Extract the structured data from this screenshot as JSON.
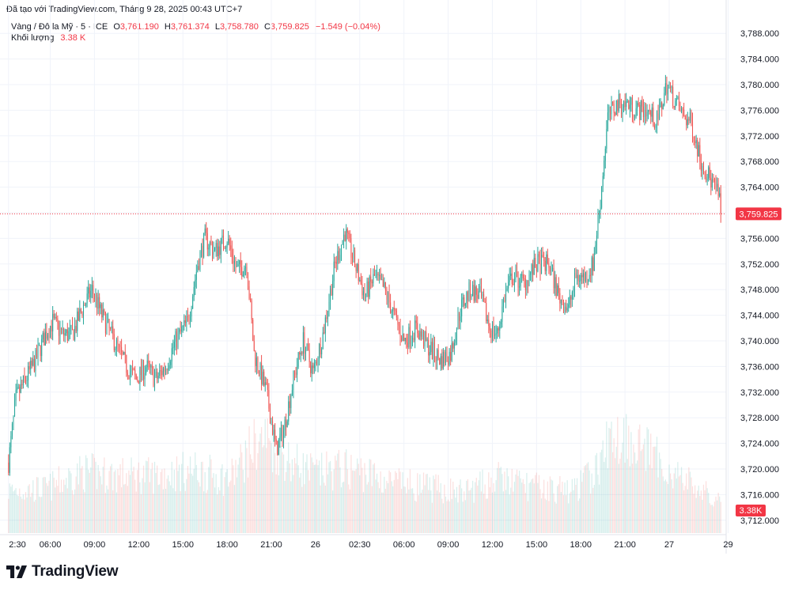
{
  "header": {
    "created_line": "Đã tạo với TradingView.com, Tháng 9 28, 2025 00:43 UTC+7"
  },
  "legend": {
    "symbol": "Vàng / Đô la Mỹ · 5 · ICE",
    "open_label": "O",
    "open_value": "3,761.190",
    "high_label": "H",
    "high_value": "3,761.374",
    "low_label": "L",
    "low_value": "3,758.780",
    "close_label": "C",
    "close_value": "3,759.825",
    "change": "−1.549 (−0.04%)",
    "volume_label": "Khối lượng",
    "volume_value": "3.38 K"
  },
  "brand": {
    "name": "TradingView"
  },
  "colors": {
    "up": "#26a69a",
    "down": "#ef5350",
    "price_badge": "#f23645",
    "grid": "#f0f3fa"
  },
  "chart_data": {
    "type": "candlestick",
    "title": "Vàng / Đô la Mỹ · 5 · ICE",
    "ylim": [
      3710,
      3790
    ],
    "y_ticks": [
      "3,788.000",
      "3,784.000",
      "3,780.000",
      "3,776.000",
      "3,772.000",
      "3,768.000",
      "3,764.000",
      "3,760.000",
      "3,756.000",
      "3,752.000",
      "3,748.000",
      "3,744.000",
      "3,740.000",
      "3,736.000",
      "3,732.000",
      "3,728.000",
      "3,724.000",
      "3,720.000",
      "3,716.000",
      "3,712.000"
    ],
    "y_tick_values": [
      3788,
      3784,
      3780,
      3776,
      3772,
      3768,
      3764,
      3760,
      3756,
      3752,
      3748,
      3744,
      3740,
      3736,
      3732,
      3728,
      3724,
      3720,
      3716,
      3712
    ],
    "x_ticks": [
      "2:30",
      "06:00",
      "09:00",
      "12:00",
      "15:00",
      "18:00",
      "21:00",
      "26",
      "02:30",
      "06:00",
      "09:00",
      "12:00",
      "15:00",
      "18:00",
      "21:00",
      "27",
      "29"
    ],
    "x_tick_index": [
      0,
      34,
      70,
      106,
      142,
      178,
      214,
      250,
      286,
      322,
      358,
      394,
      430,
      466,
      502,
      538,
      586
    ],
    "last_price": 3759.825,
    "last_price_label": "3,759.825",
    "last_volume_label": "3.38K",
    "path": [
      [
        0,
        3721
      ],
      [
        6,
        3731
      ],
      [
        14,
        3734
      ],
      [
        22,
        3737
      ],
      [
        30,
        3741
      ],
      [
        36,
        3743
      ],
      [
        44,
        3741
      ],
      [
        52,
        3741
      ],
      [
        60,
        3745
      ],
      [
        68,
        3748
      ],
      [
        76,
        3744
      ],
      [
        86,
        3740
      ],
      [
        96,
        3736
      ],
      [
        104,
        3734
      ],
      [
        112,
        3736
      ],
      [
        120,
        3734
      ],
      [
        128,
        3736
      ],
      [
        136,
        3740
      ],
      [
        146,
        3743
      ],
      [
        154,
        3752
      ],
      [
        160,
        3756
      ],
      [
        168,
        3754
      ],
      [
        178,
        3756
      ],
      [
        186,
        3751
      ],
      [
        194,
        3752
      ],
      [
        200,
        3738
      ],
      [
        210,
        3732
      ],
      [
        218,
        3723
      ],
      [
        224,
        3726
      ],
      [
        232,
        3734
      ],
      [
        240,
        3740
      ],
      [
        248,
        3735
      ],
      [
        256,
        3741
      ],
      [
        266,
        3752
      ],
      [
        274,
        3757
      ],
      [
        282,
        3752
      ],
      [
        290,
        3747
      ],
      [
        298,
        3750
      ],
      [
        306,
        3748
      ],
      [
        314,
        3744
      ],
      [
        322,
        3740
      ],
      [
        332,
        3742
      ],
      [
        342,
        3739
      ],
      [
        352,
        3737
      ],
      [
        360,
        3738
      ],
      [
        368,
        3745
      ],
      [
        376,
        3748
      ],
      [
        384,
        3747
      ],
      [
        392,
        3742
      ],
      [
        398,
        3741
      ],
      [
        404,
        3747
      ],
      [
        410,
        3750
      ],
      [
        420,
        3749
      ],
      [
        430,
        3752
      ],
      [
        440,
        3752
      ],
      [
        448,
        3747
      ],
      [
        456,
        3745
      ],
      [
        462,
        3750
      ],
      [
        470,
        3750
      ],
      [
        476,
        3752
      ],
      [
        482,
        3762
      ],
      [
        488,
        3775
      ],
      [
        496,
        3777
      ],
      [
        504,
        3777
      ],
      [
        512,
        3776
      ],
      [
        520,
        3776
      ],
      [
        528,
        3774
      ],
      [
        536,
        3780
      ],
      [
        544,
        3777
      ],
      [
        550,
        3775
      ],
      [
        556,
        3774
      ],
      [
        564,
        3768
      ],
      [
        572,
        3765
      ],
      [
        580,
        3762
      ]
    ],
    "volume_profile": [
      [
        0,
        0.25
      ],
      [
        30,
        0.26
      ],
      [
        60,
        0.36
      ],
      [
        90,
        0.34
      ],
      [
        120,
        0.34
      ],
      [
        150,
        0.37
      ],
      [
        180,
        0.32
      ],
      [
        200,
        0.52
      ],
      [
        210,
        0.56
      ],
      [
        230,
        0.42
      ],
      [
        250,
        0.35
      ],
      [
        270,
        0.38
      ],
      [
        290,
        0.36
      ],
      [
        310,
        0.3
      ],
      [
        340,
        0.27
      ],
      [
        370,
        0.24
      ],
      [
        400,
        0.32
      ],
      [
        430,
        0.27
      ],
      [
        460,
        0.25
      ],
      [
        480,
        0.38
      ],
      [
        490,
        0.56
      ],
      [
        505,
        0.58
      ],
      [
        520,
        0.48
      ],
      [
        540,
        0.36
      ],
      [
        560,
        0.27
      ],
      [
        586,
        0.14
      ]
    ]
  }
}
